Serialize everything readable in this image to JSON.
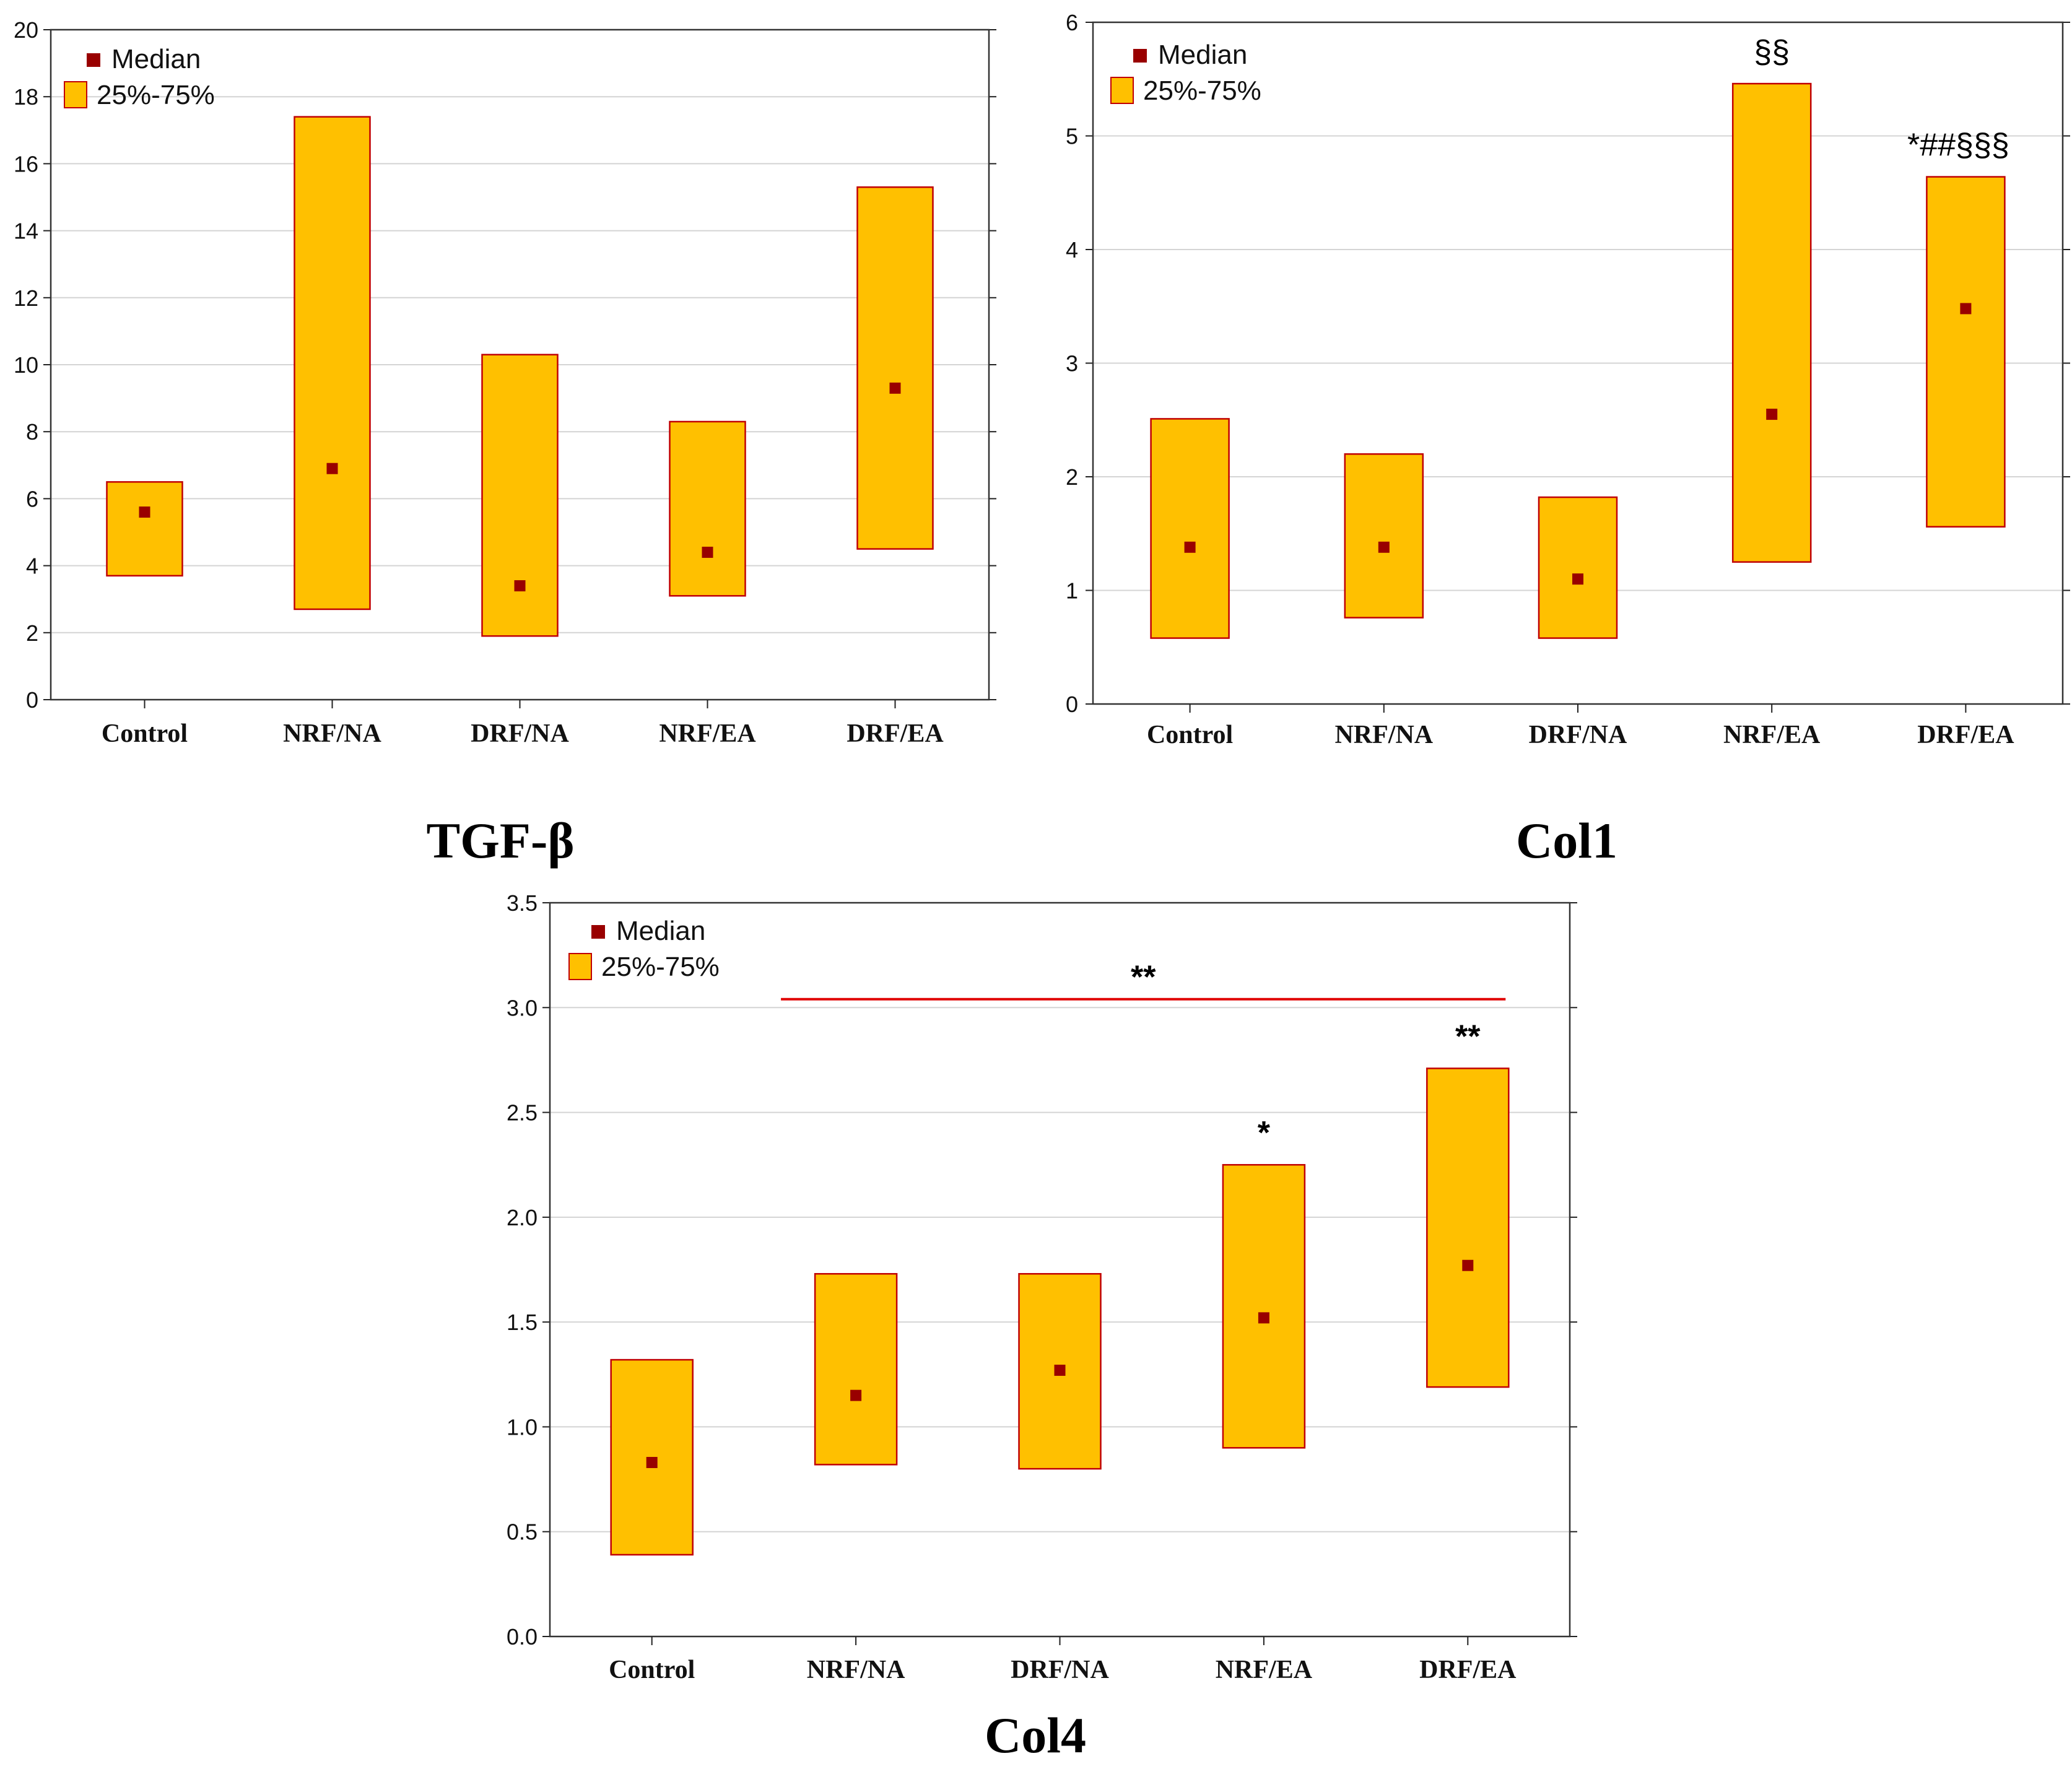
{
  "colors": {
    "box_fill": "#FFC000",
    "box_stroke": "#C00000",
    "median": "#990000",
    "grid": "#d4d4d4",
    "bracket": "#e00000"
  },
  "legend": {
    "median_label": "Median",
    "range_label": "25%-75%"
  },
  "chart_data": [
    {
      "type": "box",
      "caption": "TGF-β",
      "categories": [
        "Control",
        "NRF/NA",
        "DRF/NA",
        "NRF/EA",
        "DRF/EA"
      ],
      "yticks": [
        "0",
        "2",
        "4",
        "6",
        "8",
        "10",
        "12",
        "14",
        "16",
        "18",
        "20"
      ],
      "ylim": [
        0,
        20
      ],
      "grid": true,
      "legend_position": "top-left",
      "series": [
        {
          "name": "25%-75%",
          "low": [
            3.7,
            2.7,
            1.9,
            3.1,
            4.5
          ],
          "high": [
            6.5,
            17.4,
            10.3,
            8.3,
            15.3
          ]
        },
        {
          "name": "Median",
          "values": [
            5.6,
            6.9,
            3.4,
            4.4,
            9.3
          ]
        }
      ],
      "annotations": []
    },
    {
      "type": "box",
      "caption": "Col1",
      "categories": [
        "Control",
        "NRF/NA",
        "DRF/NA",
        "NRF/EA",
        "DRF/EA"
      ],
      "yticks": [
        "0",
        "1",
        "2",
        "3",
        "4",
        "5",
        "6"
      ],
      "ylim": [
        0,
        6
      ],
      "grid": true,
      "legend_position": "top-left",
      "series": [
        {
          "name": "25%-75%",
          "low": [
            0.58,
            0.76,
            0.58,
            1.25,
            1.56
          ],
          "high": [
            2.51,
            2.2,
            1.82,
            5.46,
            4.64
          ]
        },
        {
          "name": "Median",
          "values": [
            1.38,
            1.38,
            1.1,
            2.55,
            3.48
          ]
        }
      ],
      "annotations": [
        {
          "category": "NRF/EA",
          "text": "§§"
        },
        {
          "category": "DRF/EA",
          "text": "*##§§§"
        }
      ]
    },
    {
      "type": "box",
      "caption": "Col4",
      "categories": [
        "Control",
        "NRF/NA",
        "DRF/NA",
        "NRF/EA",
        "DRF/EA"
      ],
      "yticks": [
        "0.0",
        "0.5",
        "1.0",
        "1.5",
        "2.0",
        "2.5",
        "3.0",
        "3.5"
      ],
      "ylim": [
        0,
        3.5
      ],
      "grid": true,
      "legend_position": "top-left",
      "series": [
        {
          "name": "25%-75%",
          "low": [
            0.39,
            0.82,
            0.8,
            0.9,
            1.19
          ],
          "high": [
            1.32,
            1.73,
            1.73,
            2.25,
            2.71
          ]
        },
        {
          "name": "Median",
          "values": [
            0.83,
            1.15,
            1.27,
            1.52,
            1.77
          ]
        }
      ],
      "annotations": [
        {
          "category": "NRF/EA",
          "text": "*"
        },
        {
          "category": "DRF/EA",
          "text": "**"
        }
      ],
      "bracket": {
        "from": "NRF/NA",
        "to": "DRF/EA",
        "y": 3.04,
        "text": "**"
      }
    }
  ]
}
